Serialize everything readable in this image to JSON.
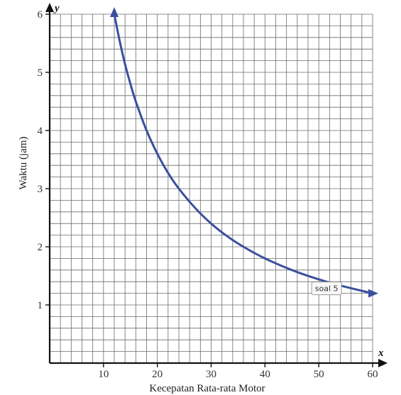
{
  "chart_data": {
    "type": "line",
    "xlabel": "Kecepatan Rata-rata Motor",
    "ylabel": "Waktu (jam)",
    "x_axis_letter": "x",
    "y_axis_letter": "y",
    "xlim": [
      0,
      60
    ],
    "ylim": [
      0,
      6
    ],
    "x_ticks": [
      "10",
      "20",
      "30",
      "40",
      "50",
      "60"
    ],
    "y_ticks": [
      "1",
      "2",
      "3",
      "4",
      "5",
      "6"
    ],
    "grid": true,
    "series": [
      {
        "color": "#3a4f9e",
        "x": [
          12,
          13,
          14,
          15,
          16,
          18,
          20,
          22,
          24,
          27,
          30,
          33,
          36,
          40,
          45,
          50,
          55,
          60
        ],
        "y": [
          6.0,
          5.54,
          5.14,
          4.8,
          4.5,
          4.0,
          3.6,
          3.27,
          3.0,
          2.67,
          2.4,
          2.18,
          2.0,
          1.8,
          1.6,
          1.44,
          1.31,
          1.2
        ]
      }
    ],
    "annotations": [
      {
        "text": "soal 5",
        "x": 50,
        "y": 1.2
      }
    ]
  }
}
